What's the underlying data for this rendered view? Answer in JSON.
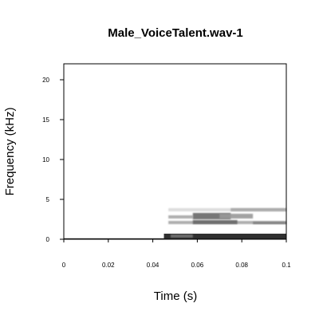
{
  "chart_data": {
    "type": "heatmap",
    "title": "Male_VoiceTalent.wav-1",
    "xlabel": "Time (s)",
    "ylabel": "Frequency (kHz)",
    "xlim": [
      0,
      0.1
    ],
    "ylim": [
      0,
      22
    ],
    "x_ticks": [
      {
        "value": 0,
        "label": "0"
      },
      {
        "value": 0.02,
        "label": "0.02"
      },
      {
        "value": 0.04,
        "label": "0.04"
      },
      {
        "value": 0.06,
        "label": "0.06"
      },
      {
        "value": 0.08,
        "label": "0.08"
      },
      {
        "value": 0.1,
        "label": "0.1"
      }
    ],
    "y_ticks": [
      {
        "value": 0,
        "label": "0"
      },
      {
        "value": 5,
        "label": "5"
      },
      {
        "value": 10,
        "label": "10"
      },
      {
        "value": 15,
        "label": "15"
      },
      {
        "value": 20,
        "label": "20"
      }
    ],
    "grid": false,
    "colormap": "grayscale (white = low energy, black = high energy)",
    "energy_regions": [
      {
        "t_start": 0.0,
        "t_end": 0.1,
        "f_low": 0.0,
        "f_high": 0.12,
        "intensity": 0.95
      },
      {
        "t_start": 0.045,
        "t_end": 0.1,
        "f_low": 0.1,
        "f_high": 0.7,
        "intensity": 0.9
      },
      {
        "t_start": 0.048,
        "t_end": 0.058,
        "f_low": 0.2,
        "f_high": 0.6,
        "intensity": 0.55
      },
      {
        "t_start": 0.047,
        "t_end": 0.1,
        "f_low": 1.9,
        "f_high": 2.3,
        "intensity": 0.35
      },
      {
        "t_start": 0.058,
        "t_end": 0.078,
        "f_low": 1.9,
        "f_high": 2.4,
        "intensity": 0.6
      },
      {
        "t_start": 0.085,
        "t_end": 0.1,
        "f_low": 1.9,
        "f_high": 2.2,
        "intensity": 0.5
      },
      {
        "t_start": 0.047,
        "t_end": 0.058,
        "f_low": 2.6,
        "f_high": 3.0,
        "intensity": 0.35
      },
      {
        "t_start": 0.058,
        "t_end": 0.075,
        "f_low": 2.5,
        "f_high": 3.3,
        "intensity": 0.6
      },
      {
        "t_start": 0.07,
        "t_end": 0.085,
        "f_low": 2.6,
        "f_high": 3.2,
        "intensity": 0.4
      },
      {
        "t_start": 0.047,
        "t_end": 0.1,
        "f_low": 3.5,
        "f_high": 3.9,
        "intensity": 0.15
      },
      {
        "t_start": 0.075,
        "t_end": 0.1,
        "f_low": 3.5,
        "f_high": 3.9,
        "intensity": 0.35
      }
    ]
  }
}
